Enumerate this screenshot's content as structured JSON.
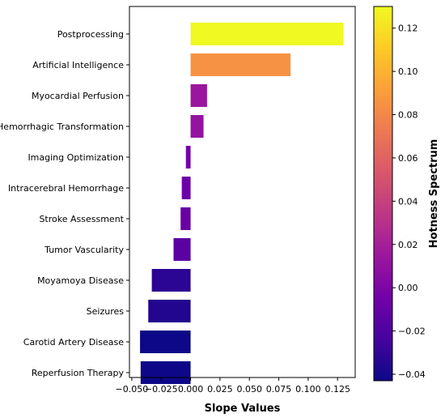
{
  "chart_data": {
    "type": "bar",
    "orientation": "horizontal",
    "categories": [
      "Postprocessing",
      "Artificial Intelligence",
      "Myocardial Perfusion",
      "Hemorrhagic Transformation",
      "Imaging Optimization",
      "Intracerebral Hemorrhage",
      "Stroke Assessment",
      "Tumor Vascularity",
      "Moyamoya Disease",
      "Seizures",
      "Carotid Artery Disease",
      "Reperfusion Therapy"
    ],
    "values": [
      0.13,
      0.085,
      0.014,
      0.011,
      -0.004,
      -0.0075,
      -0.0085,
      -0.0145,
      -0.033,
      -0.036,
      -0.043,
      -0.0425
    ],
    "xlabel": "Slope Values",
    "ylabel": "",
    "title": "",
    "xlim": [
      -0.052,
      0.14
    ],
    "x_ticks": [
      "−0.050",
      "−0.025",
      "0.000",
      "0.025",
      "0.050",
      "0.075",
      "0.100",
      "0.125"
    ],
    "x_tick_values": [
      -0.05,
      -0.025,
      0,
      0.025,
      0.05,
      0.075,
      0.1,
      0.125
    ],
    "grid": false,
    "colormap": "plasma",
    "colorbar": {
      "label": "Hotness Spectrum",
      "range": [
        -0.043,
        0.13
      ],
      "ticks": [
        "0.12",
        "0.10",
        "0.08",
        "0.06",
        "0.04",
        "0.02",
        "0.00",
        "−0.02",
        "−0.04"
      ],
      "tick_values": [
        0.12,
        0.1,
        0.08,
        0.06,
        0.04,
        0.02,
        0.0,
        -0.02,
        -0.04
      ]
    },
    "colors": {
      "plasma": [
        "#0d0887",
        "#46039f",
        "#7201a8",
        "#9c179e",
        "#bd3786",
        "#d8576b",
        "#ed7953",
        "#fb9f3a",
        "#fdca26",
        "#f0f921"
      ]
    }
  }
}
